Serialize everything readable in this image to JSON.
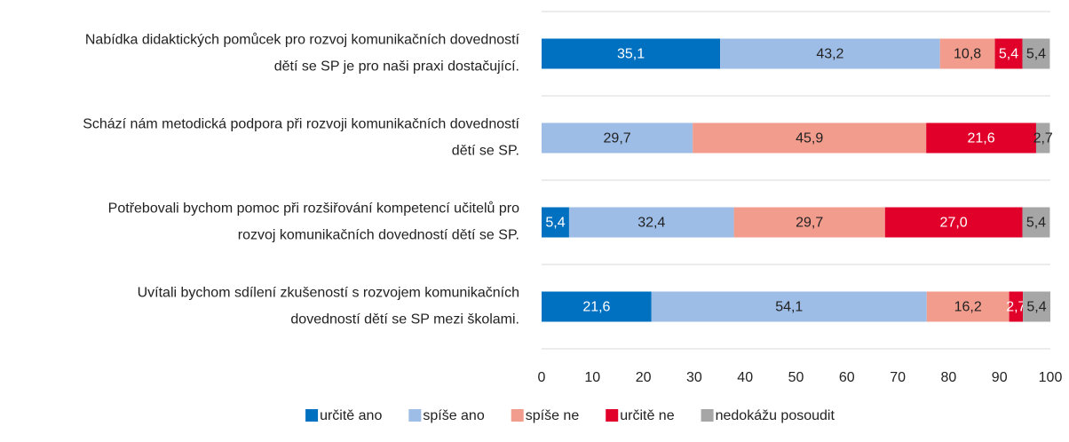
{
  "chart_data": {
    "type": "stacked-barh",
    "categories": [
      [
        "Nabídka didaktických pomůcek pro rozvoj komunikačních dovedností",
        "dětí se SP je pro naši praxi dostačující."
      ],
      [
        "Schází nám metodická podpora při rozvoji komunikačních dovedností",
        "dětí se SP."
      ],
      [
        "Potřebovali bychom pomoc při rozšiřování kompetencí učitelů pro",
        "rozvoj komunikačních dovedností dětí se SP."
      ],
      [
        "Uvítali bychom sdílení zkušeností s rozvojem komunikačních",
        "dovedností dětí se SP mezi školami."
      ]
    ],
    "series": [
      {
        "name": "určitě ano",
        "color": "#0070c0",
        "values": [
          35.1,
          null,
          5.4,
          21.6
        ],
        "value_labels": [
          "35,1",
          null,
          "5,4",
          "21,6"
        ]
      },
      {
        "name": "spíše ano",
        "color": "#9dbde6",
        "values": [
          43.2,
          29.7,
          32.4,
          54.1
        ],
        "value_labels": [
          "43,2",
          "29,7",
          "32,4",
          "54,1"
        ]
      },
      {
        "name": "spíše ne",
        "color": "#f19c8c",
        "values": [
          10.8,
          45.9,
          29.7,
          16.2
        ],
        "value_labels": [
          "10,8",
          "45,9",
          "29,7",
          "16,2"
        ]
      },
      {
        "name": "určitě ne",
        "color": "#e0002a",
        "values": [
          5.4,
          21.6,
          27.0,
          2.7
        ],
        "value_labels": [
          "5,4",
          "21,6",
          "27,0",
          "2,7"
        ]
      },
      {
        "name": "nedokážu posoudit",
        "color": "#a6a6a6",
        "values": [
          5.4,
          2.7,
          5.4,
          5.4
        ],
        "value_labels": [
          "5,4",
          "2,7",
          "5,4",
          "5,4"
        ]
      }
    ],
    "xlim": [
      0,
      100
    ],
    "xticks": [
      0,
      10,
      20,
      30,
      40,
      50,
      60,
      70,
      80,
      90,
      100
    ],
    "grid": true,
    "legend": "bottom"
  }
}
